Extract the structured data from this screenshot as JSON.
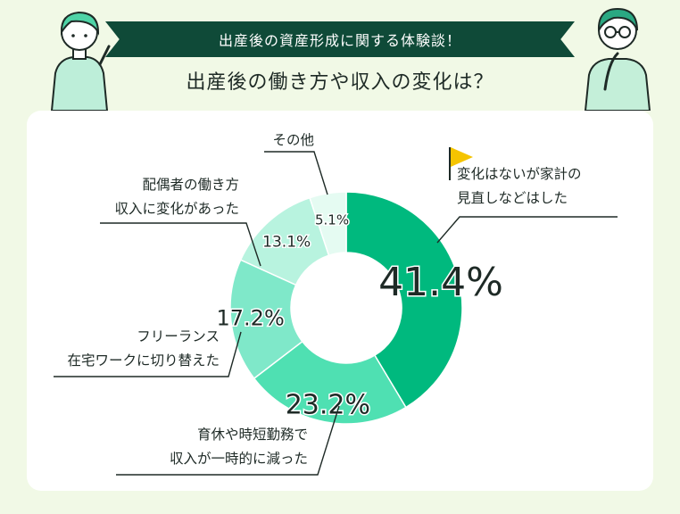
{
  "banner": {
    "label": "出産後の資産形成に関する体験談！"
  },
  "headline": "出産後の働き方や収入の変化は？",
  "colors": {
    "header_bg": "#0f4a38",
    "page_bg": "#f1f9e6",
    "slice_1": "#00b97e",
    "slice_2": "#4fe0b2",
    "slice_3": "#7fe8c9",
    "slice_4": "#b8f3df",
    "slice_5": "#e5fbf2",
    "flag": "#f5c400"
  },
  "chart_data": {
    "type": "pie",
    "variant": "donut",
    "unit": "%",
    "categories": [
      "変化はないが家計の見直しなどはした",
      "育休や時短勤務で収入が一時的に減った",
      "フリーランス在宅ワークに切り替えた",
      "配偶者の働き方収入に変化があった",
      "その他"
    ],
    "values": [
      41.4,
      23.2,
      17.2,
      13.1,
      5.1
    ],
    "value_labels": [
      "41.4%",
      "23.2%",
      "17.2%",
      "13.1%",
      "5.1%"
    ],
    "label_lines": [
      [
        "変化はないが家計の",
        "見直しなどはした"
      ],
      [
        "育休や時短勤務で",
        "収入が一時的に減った"
      ],
      [
        "フリーランス",
        "在宅ワークに切り替えた"
      ],
      [
        "配偶者の働き方",
        "収入に変化があった"
      ],
      [
        "その他"
      ]
    ],
    "highlight": "変化はないが家計の見直しなどはした"
  }
}
